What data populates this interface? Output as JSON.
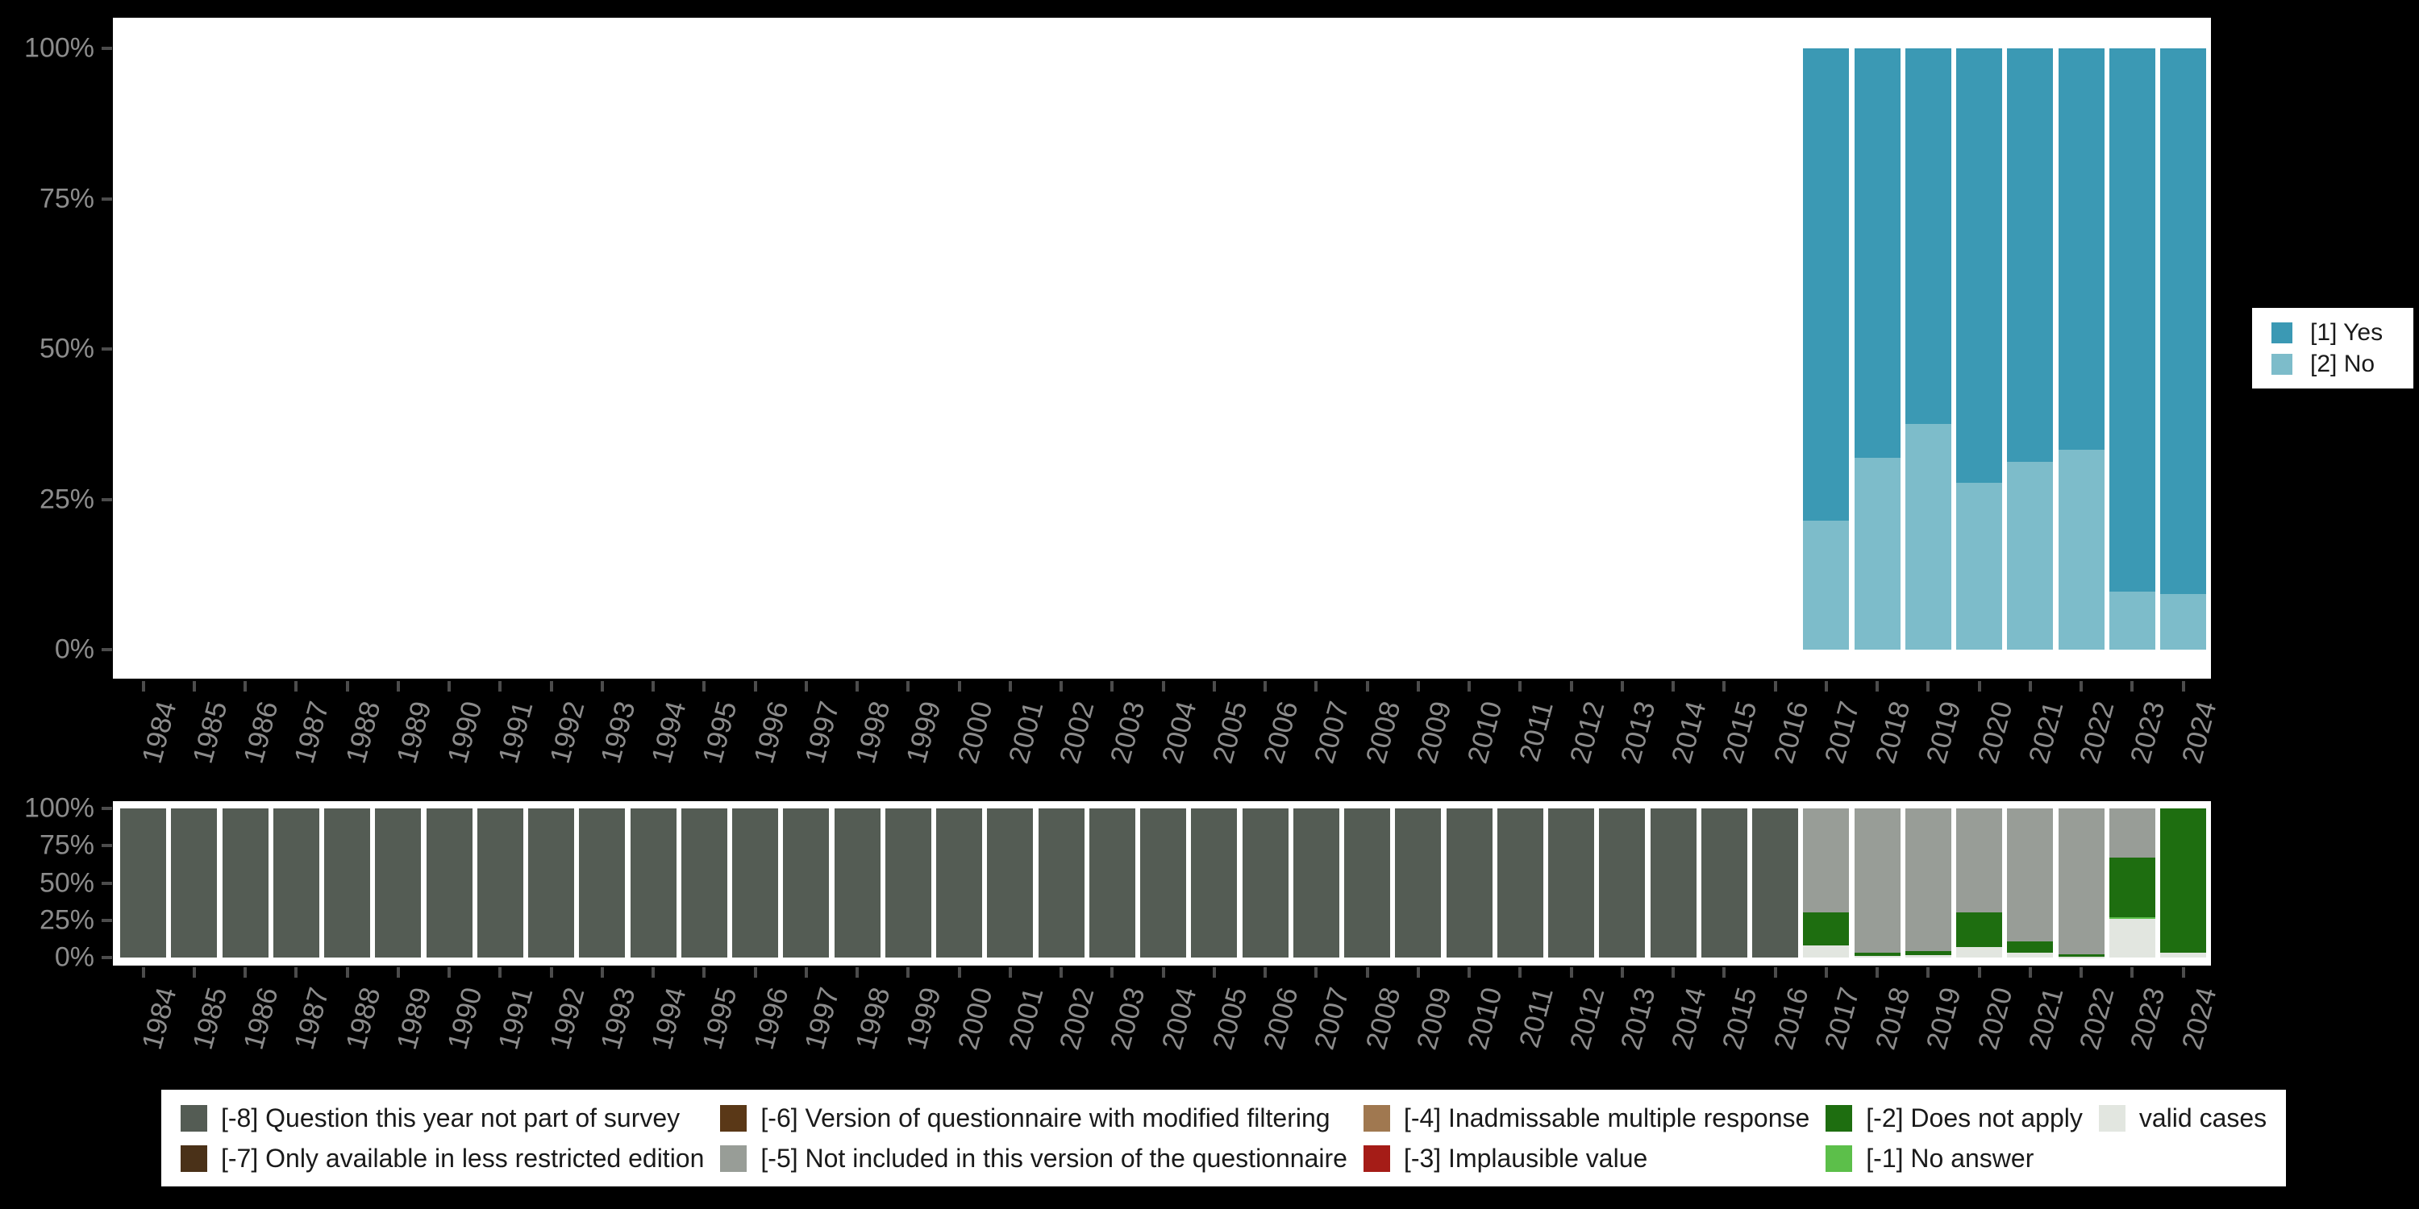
{
  "colors": {
    "background": "#000000",
    "panel": "#ffffff",
    "axis_label": "#8c8c8c",
    "tick": "#4c4c4c",
    "legend_text": "#1a1a1a"
  },
  "chart_data": [
    {
      "type": "bar",
      "stacked": true,
      "title": "",
      "xlabel": "",
      "ylabel": "",
      "ylim": [
        0,
        100
      ],
      "grid": false,
      "legend_position": "right",
      "y_ticks": [
        "100%",
        "75%",
        "50%",
        "25%",
        "0%"
      ],
      "categories": [
        "1984",
        "1985",
        "1986",
        "1987",
        "1988",
        "1989",
        "1990",
        "1991",
        "1992",
        "1993",
        "1994",
        "1995",
        "1996",
        "1997",
        "1998",
        "1999",
        "2000",
        "2001",
        "2002",
        "2003",
        "2004",
        "2005",
        "2006",
        "2007",
        "2008",
        "2009",
        "2010",
        "2011",
        "2012",
        "2013",
        "2014",
        "2015",
        "2016",
        "2017",
        "2018",
        "2019",
        "2020",
        "2021",
        "2022",
        "2023",
        "2024"
      ],
      "series": [
        {
          "name": "[1] Yes",
          "color": "#3b99b4",
          "values": [
            null,
            null,
            null,
            null,
            null,
            null,
            null,
            null,
            null,
            null,
            null,
            null,
            null,
            null,
            null,
            null,
            null,
            null,
            null,
            null,
            null,
            null,
            null,
            null,
            null,
            null,
            null,
            null,
            null,
            null,
            null,
            null,
            null,
            78.6,
            68.1,
            62.4,
            72.2,
            68.7,
            66.8,
            90.3,
            90.7
          ]
        },
        {
          "name": "[2] No",
          "color": "#7dbcca",
          "values": [
            null,
            null,
            null,
            null,
            null,
            null,
            null,
            null,
            null,
            null,
            null,
            null,
            null,
            null,
            null,
            null,
            null,
            null,
            null,
            null,
            null,
            null,
            null,
            null,
            null,
            null,
            null,
            null,
            null,
            null,
            null,
            null,
            null,
            21.4,
            31.9,
            37.6,
            27.8,
            31.3,
            33.2,
            9.7,
            9.3
          ]
        }
      ]
    },
    {
      "type": "bar",
      "stacked": true,
      "title": "",
      "xlabel": "",
      "ylabel": "",
      "ylim": [
        0,
        100
      ],
      "grid": false,
      "legend_position": "bottom",
      "y_ticks": [
        "100%",
        "75%",
        "50%",
        "25%",
        "0%"
      ],
      "categories": [
        "1984",
        "1985",
        "1986",
        "1987",
        "1988",
        "1989",
        "1990",
        "1991",
        "1992",
        "1993",
        "1994",
        "1995",
        "1996",
        "1997",
        "1998",
        "1999",
        "2000",
        "2001",
        "2002",
        "2003",
        "2004",
        "2005",
        "2006",
        "2007",
        "2008",
        "2009",
        "2010",
        "2011",
        "2012",
        "2013",
        "2014",
        "2015",
        "2016",
        "2017",
        "2018",
        "2019",
        "2020",
        "2021",
        "2022",
        "2023",
        "2024"
      ],
      "series": [
        {
          "name": "[-8] Question this year not part of survey",
          "color": "#545c54",
          "values": [
            100,
            100,
            100,
            100,
            100,
            100,
            100,
            100,
            100,
            100,
            100,
            100,
            100,
            100,
            100,
            100,
            100,
            100,
            100,
            100,
            100,
            100,
            100,
            100,
            100,
            100,
            100,
            100,
            100,
            100,
            100,
            100,
            100,
            0,
            0,
            0,
            0,
            0,
            0,
            0,
            0
          ]
        },
        {
          "name": "[-5] Not included in this version of the questionnaire",
          "color": "#989d97",
          "values": [
            0,
            0,
            0,
            0,
            0,
            0,
            0,
            0,
            0,
            0,
            0,
            0,
            0,
            0,
            0,
            0,
            0,
            0,
            0,
            0,
            0,
            0,
            0,
            0,
            0,
            0,
            0,
            0,
            0,
            0,
            0,
            0,
            0,
            69.5,
            96.5,
            95.5,
            69.5,
            89,
            98,
            33,
            0
          ]
        },
        {
          "name": "[-2] Does not apply",
          "color": "#1e6e10",
          "values": [
            0,
            0,
            0,
            0,
            0,
            0,
            0,
            0,
            0,
            0,
            0,
            0,
            0,
            0,
            0,
            0,
            0,
            0,
            0,
            0,
            0,
            0,
            0,
            0,
            0,
            0,
            0,
            0,
            0,
            0,
            0,
            0,
            0,
            22.5,
            2.5,
            3,
            23.5,
            8,
            1.5,
            40,
            97
          ]
        },
        {
          "name": "[-1] No answer",
          "color": "#5cbf4a",
          "values": [
            0,
            0,
            0,
            0,
            0,
            0,
            0,
            0,
            0,
            0,
            0,
            0,
            0,
            0,
            0,
            0,
            0,
            0,
            0,
            0,
            0,
            0,
            0,
            0,
            0,
            0,
            0,
            0,
            0,
            0,
            0,
            0,
            0,
            0,
            0,
            0,
            0,
            0,
            0,
            1,
            0
          ]
        },
        {
          "name": "valid cases",
          "color": "#e2e6e0",
          "values": [
            0,
            0,
            0,
            0,
            0,
            0,
            0,
            0,
            0,
            0,
            0,
            0,
            0,
            0,
            0,
            0,
            0,
            0,
            0,
            0,
            0,
            0,
            0,
            0,
            0,
            0,
            0,
            0,
            0,
            0,
            0,
            0,
            0,
            8,
            1,
            1.5,
            7,
            3,
            0.5,
            26,
            3
          ]
        }
      ]
    }
  ],
  "legend_top": {
    "items": [
      {
        "label": "[1] Yes",
        "color": "#3b99b4"
      },
      {
        "label": "[2] No",
        "color": "#7dbcca"
      }
    ]
  },
  "legend_bottom": {
    "items": [
      {
        "label": "[-8] Question this year not part of survey",
        "color": "#545c54"
      },
      {
        "label": "[-7] Only available in less restricted edition",
        "color": "#4a3118"
      },
      {
        "label": "[-6] Version of questionnaire with modified filtering",
        "color": "#5a3817"
      },
      {
        "label": "[-5] Not included in this version of the questionnaire",
        "color": "#989d97"
      },
      {
        "label": "[-4] Inadmissable multiple response",
        "color": "#a07850"
      },
      {
        "label": "[-3] Implausible value",
        "color": "#a51c17"
      },
      {
        "label": "[-2] Does not apply",
        "color": "#1e6e10"
      },
      {
        "label": "[-1] No answer",
        "color": "#5cbf4a"
      },
      {
        "label": "valid cases",
        "color": "#e2e6e0"
      }
    ]
  }
}
